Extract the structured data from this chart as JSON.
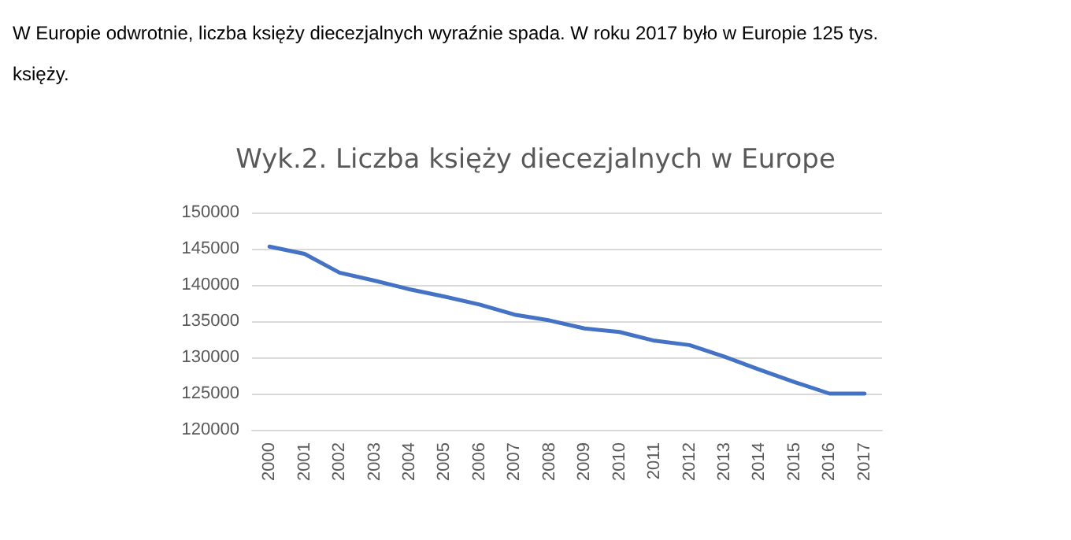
{
  "chart_data": {
    "type": "line",
    "title": "Wyk.2. Liczba księży diecezjalnych w Europe",
    "annotations": [
      "W Europie odwrotnie, liczba księży diecezjalnych wyraźnie spada. W roku 2017 było w Europie 125 tys. księży."
    ],
    "categories": [
      "2000",
      "2001",
      "2002",
      "2003",
      "2004",
      "2005",
      "2006",
      "2007",
      "2008",
      "2009",
      "2010",
      "2011",
      "2012",
      "2013",
      "2014",
      "2015",
      "2016",
      "2017"
    ],
    "series": [
      {
        "color": "#4472c4",
        "values": [
          145300,
          144300,
          141700,
          140600,
          139400,
          138400,
          137300,
          135900,
          135100,
          134000,
          133500,
          132300,
          131700,
          130100,
          128300,
          126600,
          125000,
          125000
        ]
      }
    ],
    "ylim": [
      120000,
      150000
    ],
    "yticks": [
      120000,
      125000,
      130000,
      135000,
      140000,
      145000,
      150000
    ],
    "grid": "y",
    "marker": "none",
    "line_style": "solid"
  }
}
